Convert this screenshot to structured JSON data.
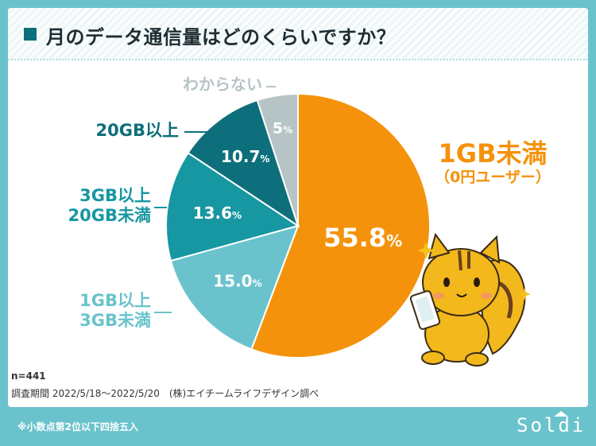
{
  "header": {
    "title": "月のデータ通信量はどのくらいですか？"
  },
  "chart_data": {
    "type": "pie",
    "title": "月のデータ通信量はどのくらいですか？",
    "slices": [
      {
        "label": "1GB未満",
        "sublabel": "（0円ユーザー）",
        "value": 55.8,
        "display": "55.8",
        "color": "#f5920b"
      },
      {
        "label": "1GB以上\n3GB未満",
        "value": 15.0,
        "display": "15.0",
        "color": "#6ac3cc"
      },
      {
        "label": "3GB以上\n20GB未満",
        "value": 13.6,
        "display": "13.6",
        "color": "#1797a2"
      },
      {
        "label": "20GB以上",
        "value": 10.7,
        "display": "10.7",
        "color": "#0d6f7b"
      },
      {
        "label": "わからない",
        "value": 5,
        "display": "5",
        "color": "#b7c4c6"
      }
    ],
    "percent_suffix": "%"
  },
  "meta": {
    "n": "n=441",
    "survey": "調査期間 2022/5/18〜2022/5/20　(株)エイチームライフデザイン調べ"
  },
  "footer": {
    "note": "※小数点第2位以下四捨五入",
    "brand": "Soldi"
  }
}
